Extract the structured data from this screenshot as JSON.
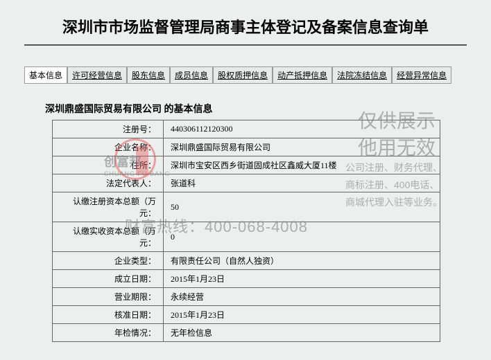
{
  "page": {
    "title": "深圳市市场监督管理局商事主体登记及备案信息查询单"
  },
  "tabs": [
    {
      "label": "基本信息",
      "active": true
    },
    {
      "label": "许可经营信息",
      "active": false
    },
    {
      "label": "股东信息",
      "active": false
    },
    {
      "label": "成员信息",
      "active": false
    },
    {
      "label": "股权质押信息",
      "active": false
    },
    {
      "label": "动产抵押信息",
      "active": false
    },
    {
      "label": "法院冻结信息",
      "active": false
    },
    {
      "label": "经营异常信息",
      "active": false
    }
  ],
  "section": {
    "title": "深圳鼎盛国际贸易有限公司  的基本信息"
  },
  "info": {
    "rows": [
      {
        "label": "注册号：",
        "value": "440306112120300"
      },
      {
        "label": "企业名称：",
        "value": "深圳鼎盛国际贸易有限公司"
      },
      {
        "label": "住所：",
        "value": "深圳市宝安区西乡街道固成社区鑫威大厦11楼"
      },
      {
        "label": "法定代表人：",
        "value": "张道科"
      },
      {
        "label": "认缴注册资本总额（万元：",
        "value": "50"
      },
      {
        "label": "认缴实收资本总额（万元：",
        "value": "0"
      },
      {
        "label": "企业类型：",
        "value": "有限责任公司（自然人独资）"
      },
      {
        "label": "成立日期：",
        "value": "2015年1月23日"
      },
      {
        "label": "营业期限：",
        "value": "永续经营"
      },
      {
        "label": "核准日期：",
        "value": "2015年1月23日"
      },
      {
        "label": "年检情况：",
        "value": "无年检信息"
      }
    ]
  },
  "watermark": {
    "large_line1": "仅供展示",
    "large_line2": "他用无效",
    "small_line1": "公司注册、财务代理、",
    "small_line2": "商标注册、400电话、",
    "small_line3": "商城代理入驻等业务。",
    "hotline": "财富热线：400-068-4008",
    "logo_text": "创富邦"
  },
  "colors": {
    "background": "#ecefee",
    "border": "#666666",
    "text": "#000000",
    "watermark": "rgba(120,120,120,0.55)",
    "logo_red": "rgba(230,80,80,0.5)"
  }
}
